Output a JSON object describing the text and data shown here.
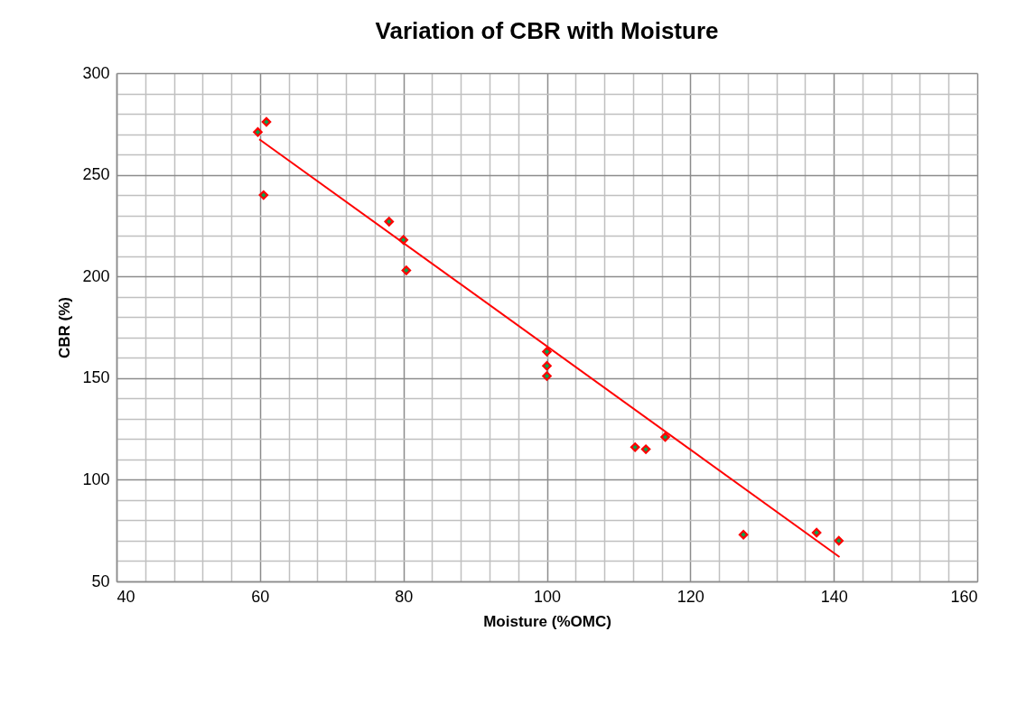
{
  "chart_data": {
    "type": "scatter",
    "title": "Variation of CBR with Moisture",
    "xlabel": "Moisture (%OMC)",
    "ylabel": "CBR (%)",
    "marker": "diamond",
    "grid": true,
    "series": [
      {
        "color": "#ff0000",
        "x": [
          59.7,
          60.9,
          60.5,
          78,
          80,
          80.4,
          100,
          100,
          100,
          112.3,
          113.8,
          116.5,
          127.4,
          137.6,
          140.7
        ],
        "values": [
          271,
          276,
          240,
          227,
          218,
          203,
          163,
          156,
          151,
          116,
          115,
          121,
          73,
          74,
          70
        ]
      },
      {
        "type": "line",
        "marker": "none",
        "color": "#ff0000",
        "x": [
          59.9,
          140.8
        ],
        "values": [
          267.5,
          62
        ]
      }
    ],
    "xlim": [
      40,
      160
    ],
    "xticks": [
      40,
      {
        "value": 44,
        "label": null
      },
      {
        "value": 48,
        "label": null
      },
      {
        "value": 52,
        "label": null
      },
      {
        "value": 56,
        "label": null
      },
      60,
      {
        "value": 64,
        "label": null
      },
      {
        "value": 68,
        "label": null
      },
      {
        "value": 72,
        "label": null
      },
      {
        "value": 76,
        "label": null
      },
      80,
      {
        "value": 84,
        "label": null
      },
      {
        "value": 88,
        "label": null
      },
      {
        "value": 92,
        "label": null
      },
      {
        "value": 96,
        "label": null
      },
      100,
      {
        "value": 104,
        "label": null
      },
      {
        "value": 108,
        "label": null
      },
      {
        "value": 112,
        "label": null
      },
      {
        "value": 116,
        "label": null
      },
      120,
      {
        "value": 124,
        "label": null
      },
      {
        "value": 128,
        "label": null
      },
      {
        "value": 132,
        "label": null
      },
      {
        "value": 136,
        "label": null
      },
      140,
      {
        "value": 144,
        "label": null
      },
      {
        "value": 148,
        "label": null
      },
      {
        "value": 152,
        "label": null
      },
      {
        "value": 156,
        "label": null
      },
      160
    ],
    "ylim": [
      50,
      300
    ],
    "yticks": [
      50,
      {
        "value": 60,
        "label": null
      },
      {
        "value": 70,
        "label": null
      },
      {
        "value": 80,
        "label": null
      },
      {
        "value": 90,
        "label": null
      },
      100,
      {
        "value": 110,
        "label": null
      },
      {
        "value": 120,
        "label": null
      },
      {
        "value": 130,
        "label": null
      },
      {
        "value": 140,
        "label": null
      },
      150,
      {
        "value": 160,
        "label": null
      },
      {
        "value": 170,
        "label": null
      },
      {
        "value": 180,
        "label": null
      },
      {
        "value": 190,
        "label": null
      },
      200,
      {
        "value": 210,
        "label": null
      },
      {
        "value": 220,
        "label": null
      },
      {
        "value": 230,
        "label": null
      },
      {
        "value": 240,
        "label": null
      },
      250,
      {
        "value": 260,
        "label": null
      },
      {
        "value": 270,
        "label": null
      },
      {
        "value": 280,
        "label": null
      },
      {
        "value": 290,
        "label": null
      },
      300
    ]
  }
}
